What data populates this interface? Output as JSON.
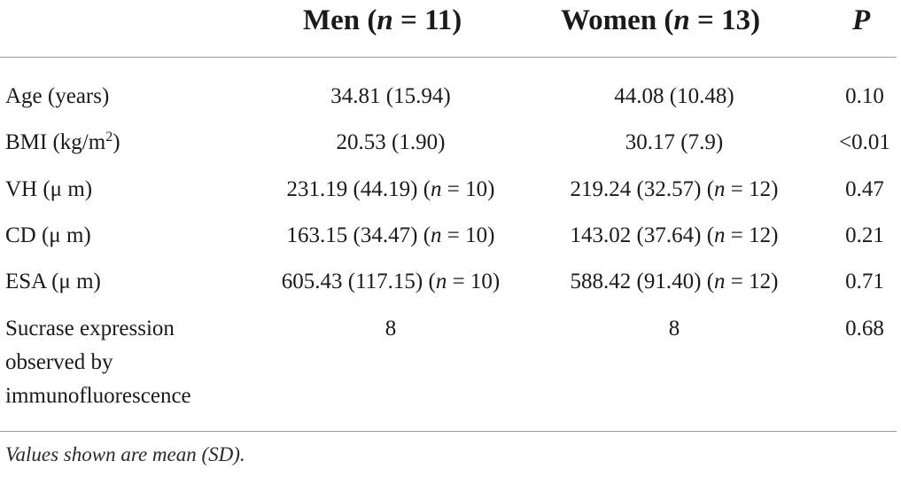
{
  "header": {
    "men_label": "Men",
    "men_n": "11",
    "women_label": "Women",
    "women_n": "13",
    "p_label": "P"
  },
  "rows": [
    {
      "label": "Age (years)",
      "men": "34.81 (15.94)",
      "men_n": "",
      "women": "44.08 (10.48)",
      "women_n": "",
      "p": "0.10"
    },
    {
      "label": "BMI (kg/m",
      "label_sup": "2",
      "label_tail": ")",
      "men": "20.53 (1.90)",
      "men_n": "",
      "women": "30.17 (7.9)",
      "women_n": "",
      "p": "<0.01"
    },
    {
      "label": "VH (μ m)",
      "men": "231.19 (44.19)",
      "men_n": "10",
      "women": "219.24 (32.57)",
      "women_n": "12",
      "p": "0.47"
    },
    {
      "label": "CD (μ m)",
      "men": "163.15 (34.47)",
      "men_n": "10",
      "women": "143.02 (37.64)",
      "women_n": "12",
      "p": "0.21"
    },
    {
      "label": "ESA (μ m)",
      "men": "605.43 (117.15)",
      "men_n": "10",
      "women": "588.42 (91.40)",
      "women_n": "12",
      "p": "0.71"
    },
    {
      "label": "Sucrase expression observed by immunofluorescence",
      "men": "8",
      "men_n": "",
      "women": "8",
      "women_n": "",
      "p": "0.68"
    }
  ],
  "footnote": "Values shown are mean (SD)."
}
